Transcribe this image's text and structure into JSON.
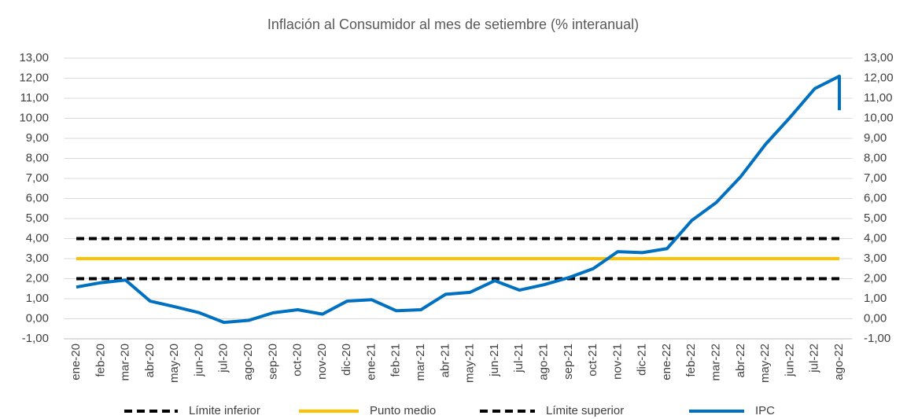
{
  "chart_data": {
    "type": "line",
    "title": "Inflación al Consumidor al mes de setiembre (% interanual)",
    "categories": [
      "ene-20",
      "feb-20",
      "mar-20",
      "abr-20",
      "may-20",
      "jun-20",
      "jul-20",
      "ago-20",
      "sep-20",
      "oct-20",
      "nov-20",
      "dic-20",
      "ene-21",
      "feb-21",
      "mar-21",
      "abr-21",
      "may-21",
      "jun-21",
      "jul-21",
      "ago-21",
      "sep-21",
      "oct-21",
      "nov-21",
      "dic-21",
      "ene-22",
      "feb-22",
      "mar-22",
      "abr-22",
      "may-22",
      "jun-22",
      "jul-22",
      "ago-22",
      null
    ],
    "series": [
      {
        "name": "Límite inferior",
        "color": "#000000",
        "dashed": true,
        "values": [
          2,
          2,
          2,
          2,
          2,
          2,
          2,
          2,
          2,
          2,
          2,
          2,
          2,
          2,
          2,
          2,
          2,
          2,
          2,
          2,
          2,
          2,
          2,
          2,
          2,
          2,
          2,
          2,
          2,
          2,
          2,
          2,
          null
        ]
      },
      {
        "name": "Punto medio",
        "color": "#ffc000",
        "dashed": false,
        "values": [
          3,
          3,
          3,
          3,
          3,
          3,
          3,
          3,
          3,
          3,
          3,
          3,
          3,
          3,
          3,
          3,
          3,
          3,
          3,
          3,
          3,
          3,
          3,
          3,
          3,
          3,
          3,
          3,
          3,
          3,
          3,
          3,
          null
        ]
      },
      {
        "name": "Límite superior",
        "color": "#000000",
        "dashed": true,
        "values": [
          4,
          4,
          4,
          4,
          4,
          4,
          4,
          4,
          4,
          4,
          4,
          4,
          4,
          4,
          4,
          4,
          4,
          4,
          4,
          4,
          4,
          4,
          4,
          4,
          4,
          4,
          4,
          4,
          4,
          4,
          4,
          4,
          null
        ]
      },
      {
        "name": "IPC",
        "color": "#0070c0",
        "dashed": false,
        "values": [
          1.58,
          1.8,
          1.93,
          0.88,
          0.6,
          0.3,
          -0.18,
          -0.08,
          0.3,
          0.45,
          0.23,
          0.88,
          0.95,
          0.4,
          0.45,
          1.22,
          1.32,
          1.9,
          1.43,
          1.7,
          2.05,
          2.5,
          3.35,
          3.3,
          3.5,
          4.9,
          5.8,
          7.1,
          8.7,
          10.05,
          11.48,
          12.1,
          10.4
        ]
      }
    ],
    "ylim": [
      -1,
      13
    ],
    "yticks": [
      {
        "value": -1,
        "label": "-1,00"
      },
      {
        "value": 0,
        "label": "0,00"
      },
      {
        "value": 1,
        "label": "1,00"
      },
      {
        "value": 2,
        "label": "2,00"
      },
      {
        "value": 3,
        "label": "3,00"
      },
      {
        "value": 4,
        "label": "4,00"
      },
      {
        "value": 5,
        "label": "5,00"
      },
      {
        "value": 6,
        "label": "6,00"
      },
      {
        "value": 7,
        "label": "7,00"
      },
      {
        "value": 8,
        "label": "8,00"
      },
      {
        "value": 9,
        "label": "9,00"
      },
      {
        "value": 10,
        "label": "10,00"
      },
      {
        "value": 11,
        "label": "11,00"
      },
      {
        "value": 12,
        "label": "12,00"
      },
      {
        "value": 13,
        "label": "13,00"
      }
    ],
    "y2lim": [
      -1,
      13
    ],
    "y2ticks": [
      {
        "value": -1,
        "label": "-1,00"
      },
      {
        "value": 0,
        "label": "0,00"
      },
      {
        "value": 1,
        "label": "1,00"
      },
      {
        "value": 2,
        "label": "2,00"
      },
      {
        "value": 3,
        "label": "3,00"
      },
      {
        "value": 4,
        "label": "4,00"
      },
      {
        "value": 5,
        "label": "5,00"
      },
      {
        "value": 6,
        "label": "6,00"
      },
      {
        "value": 7,
        "label": "7,00"
      },
      {
        "value": 8,
        "label": "8,00"
      },
      {
        "value": 9,
        "label": "9,00"
      },
      {
        "value": 10,
        "label": "10,00"
      },
      {
        "value": 11,
        "label": "11,00"
      },
      {
        "value": 12,
        "label": "12,00"
      },
      {
        "value": 13,
        "label": "13,00"
      }
    ],
    "grid": true,
    "legend": "bottom"
  }
}
